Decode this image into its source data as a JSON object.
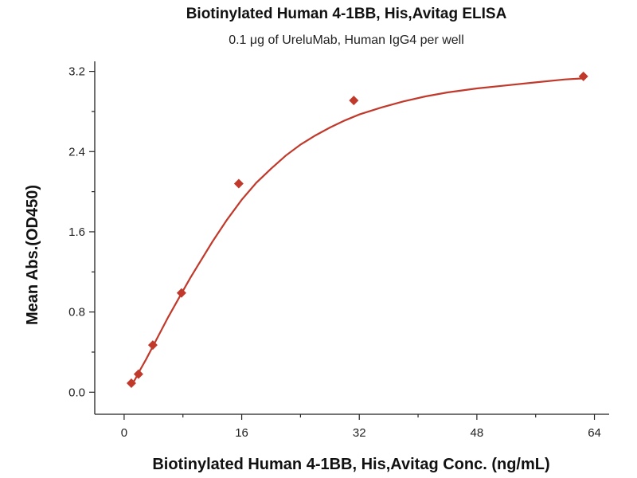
{
  "chart_data": {
    "type": "scatter",
    "title": "Biotinylated Human 4-1BB, His,Avitag ELISA",
    "subtitle": "0.1 μg of UreluMab, Human IgG4 per well",
    "xlabel": "Biotinylated Human 4-1BB, His,Avitag Conc. (ng/mL)",
    "ylabel": "Mean Abs.(OD450)",
    "xlim": [
      -4,
      66
    ],
    "ylim": [
      -0.22,
      3.3
    ],
    "x_ticks": [
      "0",
      "16",
      "32",
      "48",
      "64"
    ],
    "y_ticks": [
      "0.0",
      "0.8",
      "1.6",
      "2.4",
      "3.2"
    ],
    "grid": false,
    "legend": "none",
    "color": "#c0392b",
    "series": [
      {
        "marker": "diamond",
        "x": [
          0.98,
          1.95,
          3.9,
          7.8,
          15.6,
          31.25,
          62.5
        ],
        "y": [
          0.09,
          0.18,
          0.47,
          0.99,
          2.08,
          2.91,
          3.15
        ]
      }
    ],
    "fit_curve": {
      "type": "4PL",
      "x": [
        0.98,
        1.5,
        2,
        3,
        4,
        5,
        6,
        7,
        8,
        9,
        10,
        12,
        14,
        16,
        18,
        20,
        22,
        24,
        26,
        28,
        30,
        32,
        35,
        38,
        41,
        44,
        48,
        52,
        56,
        60,
        62.5
      ],
      "y": [
        0.07,
        0.13,
        0.2,
        0.33,
        0.47,
        0.61,
        0.75,
        0.88,
        1.01,
        1.14,
        1.26,
        1.5,
        1.72,
        1.92,
        2.09,
        2.23,
        2.36,
        2.47,
        2.56,
        2.64,
        2.71,
        2.77,
        2.84,
        2.9,
        2.95,
        2.99,
        3.03,
        3.06,
        3.09,
        3.12,
        3.13
      ]
    }
  }
}
